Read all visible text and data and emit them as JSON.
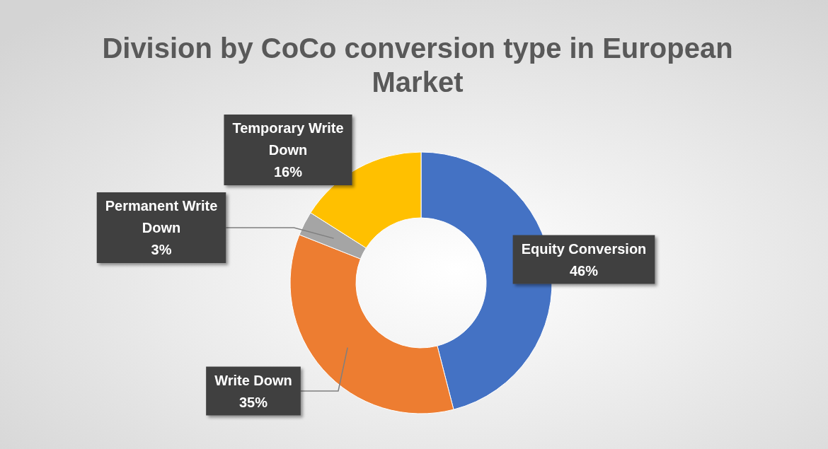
{
  "chart_data": {
    "type": "donut",
    "title": "Division by CoCo conversion type in European Market",
    "categories": [
      "Equity Conversion",
      "Write Down",
      "Permanent Write Down",
      "Temporary Write Down"
    ],
    "values": [
      46,
      35,
      3,
      16
    ],
    "colors": [
      "#4472c4",
      "#ed7d31",
      "#a5a5a5",
      "#ffc000"
    ],
    "value_labels": [
      "46%",
      "35%",
      "3%",
      "16%"
    ]
  }
}
